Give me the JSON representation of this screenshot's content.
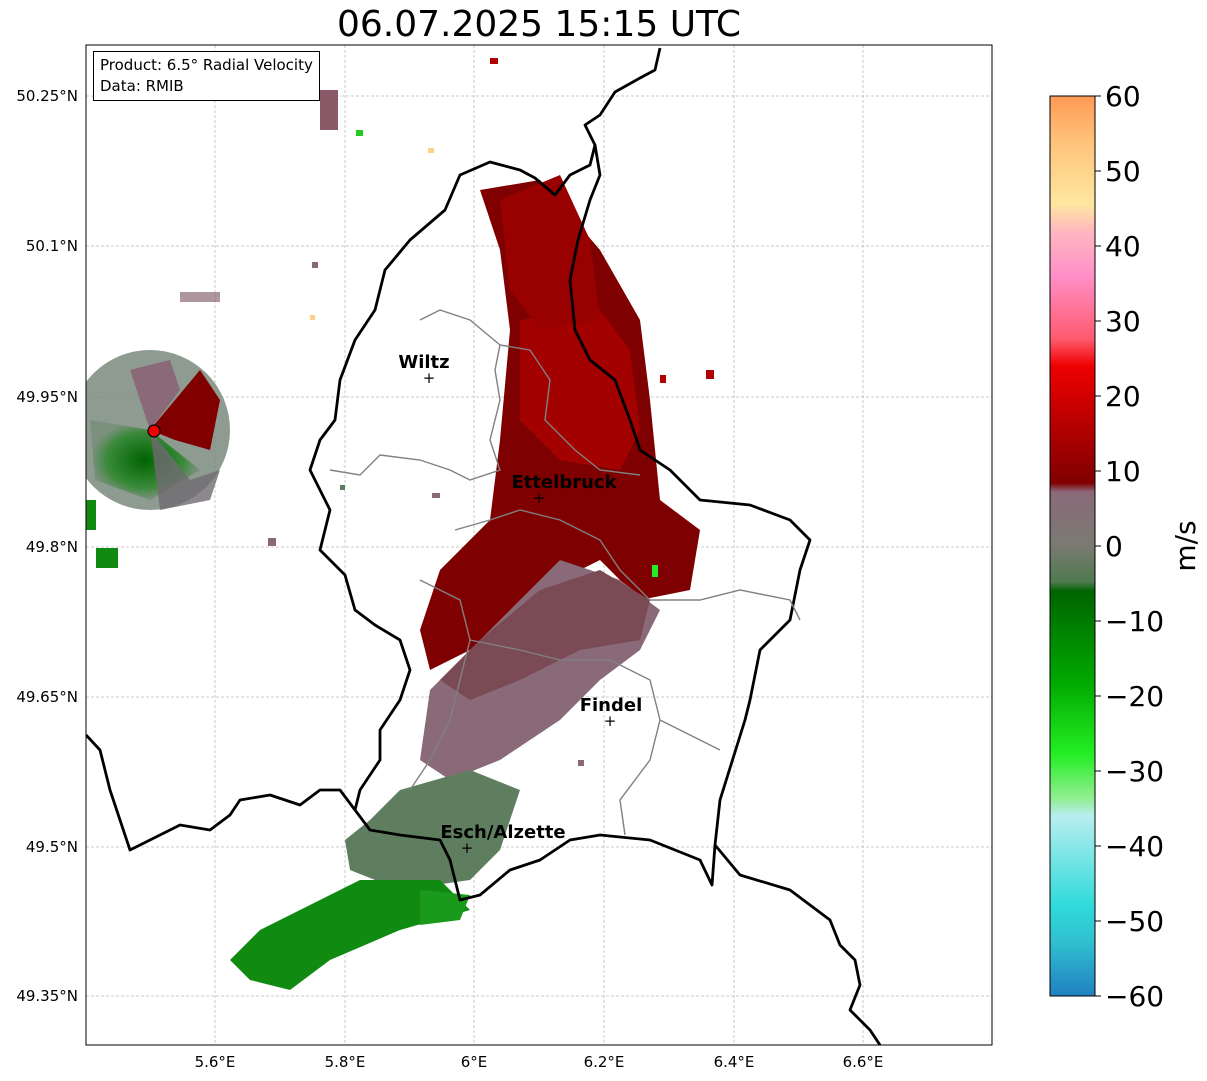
{
  "title": "06.07.2025 15:15 UTC",
  "info": {
    "product_line": "Product: 6.5° Radial Velocity",
    "data_line": "Data: RMIB"
  },
  "axes": {
    "lon_ticks": [
      "5.6°E",
      "5.8°E",
      "6°E",
      "6.2°E",
      "6.4°E",
      "6.6°E"
    ],
    "lat_ticks": [
      "50.25°N",
      "50.1°N",
      "49.95°N",
      "49.8°N",
      "49.65°N",
      "49.5°N",
      "49.35°N"
    ]
  },
  "cities": [
    {
      "name": "Wiltz",
      "lon": 5.93,
      "lat": 49.97
    },
    {
      "name": "Ettelbruck",
      "lon": 6.1,
      "lat": 49.85
    },
    {
      "name": "Findel",
      "lon": 6.21,
      "lat": 49.63
    },
    {
      "name": "Esch/Alzette",
      "lon": 5.99,
      "lat": 49.5
    }
  ],
  "radar_site": {
    "lon": 5.505,
    "lat": 49.915
  },
  "colorbar": {
    "label": "m/s",
    "min": -60,
    "max": 60,
    "ticks": [
      "60",
      "50",
      "40",
      "30",
      "20",
      "10",
      "0",
      "−10",
      "−20",
      "−30",
      "−40",
      "−50",
      "−60"
    ],
    "colors": {
      "orange": "#ff9a55",
      "peach": "#ffc27a",
      "light_yellow": "#ffe7a0",
      "pink": "#ff8fc8",
      "salmon": "#ff5a6e",
      "red": "#ee0000",
      "dark_red": "#800000",
      "mauve": "#8a6a78",
      "grey_green": "#5a7a5a",
      "dark_green": "#006400",
      "green": "#00a800",
      "bright_green": "#22ee22",
      "light_green": "#90ee90",
      "pale_cyan": "#b8eef0",
      "cyan": "#30dada",
      "blue": "#2080c0"
    }
  }
}
